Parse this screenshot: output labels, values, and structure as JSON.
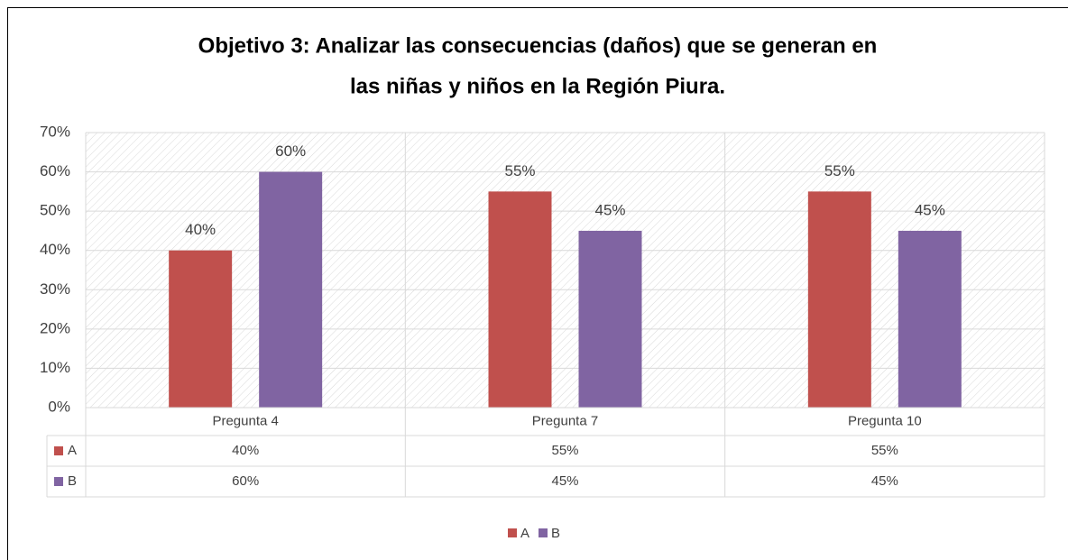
{
  "chart_data": {
    "type": "bar",
    "title": [
      "Objetivo 3: Analizar las consecuencias (daños) que se generan en",
      "las niñas y niños en la Región Piura."
    ],
    "categories": [
      "Pregunta 4",
      "Pregunta 7",
      "Pregunta 10"
    ],
    "series": [
      {
        "name": "A",
        "color": "#c0504d",
        "values": [
          40,
          55,
          55
        ],
        "value_labels": [
          "40%",
          "55%",
          "55%"
        ]
      },
      {
        "name": "B",
        "color": "#8064a2",
        "values": [
          60,
          45,
          45
        ],
        "value_labels": [
          "60%",
          "45%",
          "45%"
        ]
      }
    ],
    "ylim": [
      0,
      70
    ],
    "yticks": [
      {
        "value": 0,
        "label": "0%"
      },
      {
        "value": 10,
        "label": "10%"
      },
      {
        "value": 20,
        "label": "20%"
      },
      {
        "value": 30,
        "label": "30%"
      },
      {
        "value": 40,
        "label": "40%"
      },
      {
        "value": 50,
        "label": "50%"
      },
      {
        "value": 60,
        "label": "60%"
      },
      {
        "value": 70,
        "label": "70%"
      }
    ],
    "grid": true,
    "data_table": true,
    "legend": "bottom"
  }
}
